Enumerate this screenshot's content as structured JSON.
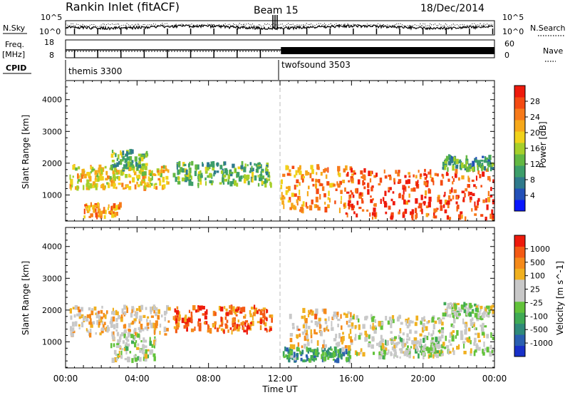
{
  "header": {
    "station": "Rankin Inlet (fitACF)",
    "beam": "Beam 15",
    "date": "18/Dec/2014"
  },
  "top_panels": {
    "nsky_label": "N.Sky",
    "nsky_ticks": [
      "10^5",
      "10^0"
    ],
    "nsearch_label": "N.Search",
    "nsearch_ticks": [
      "10^5",
      "10^0"
    ],
    "freq_label": "Freq.",
    "freq_unit": "[MHz]",
    "freq_ticks": [
      "18",
      "8"
    ],
    "nave_label": "Nave",
    "nave_ticks": [
      "60",
      "0"
    ],
    "cpid_label": "CPID",
    "programs": [
      {
        "name": "themis 3300",
        "start_hour": 0.0
      },
      {
        "name": "twofsound 3503",
        "start_hour": 12.0
      }
    ]
  },
  "power_panel": {
    "ylabel": "Slant Range [km]",
    "yticks": [
      "4000",
      "3000",
      "2000",
      "1000"
    ],
    "colorbar_label": "Power [dB]",
    "colorbar_ticks": [
      "28",
      "24",
      "20",
      "16",
      "12",
      "8",
      "4"
    ],
    "colors": [
      "#0a17ff",
      "#2350b8",
      "#2f7a8c",
      "#3d9e6a",
      "#63b843",
      "#a6cf2a",
      "#f0d21a",
      "#f6a81a",
      "#f77a1a",
      "#f44a12",
      "#ee1a0c"
    ]
  },
  "velocity_panel": {
    "ylabel": "Slant Range [km]",
    "yticks": [
      "4000",
      "3000",
      "2000",
      "1000"
    ],
    "colorbar_label": "Velocity [m s^-1]",
    "colorbar_ticks": [
      "1000",
      "500",
      "100",
      "25",
      "-25",
      "-100",
      "-500",
      "-1000"
    ],
    "colors": [
      "#1830c8",
      "#2a5fb0",
      "#2f8a7a",
      "#3faa55",
      "#62c23a",
      "#c8c8c8",
      "#c8c8c8",
      "#f0b020",
      "#f58a1a",
      "#f45a14",
      "#ee1a0c"
    ]
  },
  "xaxis": {
    "label": "Time UT",
    "ticks": [
      "00:00",
      "04:00",
      "08:00",
      "12:00",
      "16:00",
      "20:00",
      "00:00"
    ]
  },
  "chart_data": [
    {
      "type": "heatmap",
      "quantity": "Power",
      "x_range_hours": [
        0,
        24
      ],
      "y_range_km": [
        180,
        4600
      ],
      "z_range": [
        0,
        30
      ],
      "regions": [
        {
          "t0": 0.2,
          "t1": 5.8,
          "r0": 1200,
          "r1": 1900,
          "z": 18
        },
        {
          "t0": 1.0,
          "t1": 3.0,
          "r0": 300,
          "r1": 700,
          "z": 22
        },
        {
          "t0": 2.5,
          "t1": 4.5,
          "r0": 1800,
          "r1": 2400,
          "z": 12
        },
        {
          "t0": 6.0,
          "t1": 11.5,
          "r0": 1300,
          "r1": 2000,
          "z": 12
        },
        {
          "t0": 12.0,
          "t1": 16.0,
          "r0": 500,
          "r1": 1900,
          "z": 22
        },
        {
          "t0": 15.5,
          "t1": 23.9,
          "r0": 250,
          "r1": 1800,
          "z": 26
        },
        {
          "t0": 21.0,
          "t1": 23.9,
          "r0": 1800,
          "r1": 2200,
          "z": 10
        }
      ]
    },
    {
      "type": "heatmap",
      "quantity": "Velocity",
      "x_range_hours": [
        0,
        24
      ],
      "y_range_km": [
        180,
        4600
      ],
      "z_range": [
        -1000,
        1000
      ],
      "regions": [
        {
          "t0": 0.2,
          "t1": 5.8,
          "r0": 1200,
          "r1": 2100,
          "z": 300
        },
        {
          "t0": 2.5,
          "t1": 5.0,
          "r0": 400,
          "r1": 1200,
          "z": 0
        },
        {
          "t0": 6.0,
          "t1": 11.5,
          "r0": 1300,
          "r1": 2100,
          "z": 700
        },
        {
          "t0": 12.0,
          "t1": 16.0,
          "r0": 400,
          "r1": 800,
          "z": -400
        },
        {
          "t0": 12.5,
          "t1": 16.0,
          "r0": 800,
          "r1": 2000,
          "z": 300
        },
        {
          "t0": 16.0,
          "t1": 23.9,
          "r0": 600,
          "r1": 1800,
          "z": 100
        },
        {
          "t0": 17.5,
          "t1": 21.0,
          "r0": 500,
          "r1": 1100,
          "z": 0
        },
        {
          "t0": 21.0,
          "t1": 23.9,
          "r0": 1800,
          "r1": 2200,
          "z": 0
        }
      ]
    }
  ]
}
